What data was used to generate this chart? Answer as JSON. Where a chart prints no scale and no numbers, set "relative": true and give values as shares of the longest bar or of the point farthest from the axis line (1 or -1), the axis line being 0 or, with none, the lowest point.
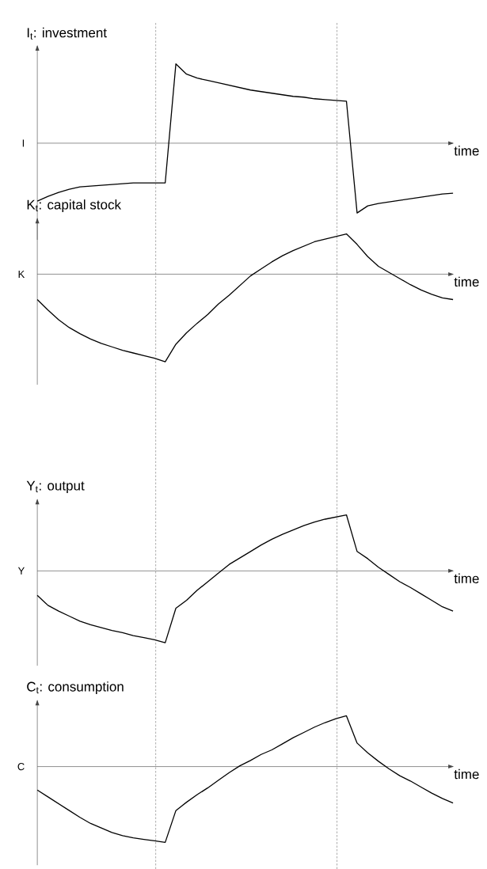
{
  "chart_data": [
    {
      "type": "line",
      "title": "I$_{t}$: investment",
      "xlabel": "time",
      "ylabel": "I",
      "relative": true,
      "color": "#000000",
      "categories": [
        null,
        null,
        null,
        null,
        null,
        null,
        null,
        null,
        null,
        null,
        null,
        null,
        null,
        null,
        null,
        null,
        null,
        null,
        null,
        null,
        null,
        null,
        null,
        null,
        null,
        null,
        null,
        null,
        null,
        null,
        null,
        null,
        null,
        null,
        null,
        null,
        null,
        null,
        null,
        null
      ],
      "values": [
        -0.73,
        -0.67,
        -0.62,
        -0.58,
        -0.55,
        -0.54,
        -0.53,
        -0.52,
        -0.51,
        -0.5,
        -0.5,
        -0.5,
        -0.5,
        1,
        0.87,
        0.82,
        0.79,
        0.76,
        0.73,
        0.7,
        0.67,
        0.65,
        0.63,
        0.61,
        0.59,
        0.58,
        0.56,
        0.55,
        0.54,
        0.53,
        -0.88,
        -0.79,
        -0.76,
        -0.74,
        -0.72,
        -0.7,
        -0.68,
        -0.66,
        -0.64,
        -0.63
      ]
    },
    {
      "type": "line",
      "title": "K$_{t}$:  capital stock",
      "xlabel": "time",
      "ylabel": "K",
      "relative": true,
      "color": "#000000",
      "categories": [
        null,
        null,
        null,
        null,
        null,
        null,
        null,
        null,
        null,
        null,
        null,
        null,
        null,
        null,
        null,
        null,
        null,
        null,
        null,
        null,
        null,
        null,
        null,
        null,
        null,
        null,
        null,
        null,
        null,
        null,
        null,
        null,
        null,
        null,
        null,
        null,
        null,
        null,
        null,
        null
      ],
      "values": [
        -0.29,
        -0.41,
        -0.52,
        -0.61,
        -0.68,
        -0.74,
        -0.79,
        -0.83,
        -0.87,
        -0.9,
        -0.93,
        -0.96,
        -1,
        -0.8,
        -0.67,
        -0.56,
        -0.46,
        -0.34,
        -0.24,
        -0.13,
        -0.02,
        0.06,
        0.14,
        0.21,
        0.27,
        0.32,
        0.37,
        0.4,
        0.43,
        0.46,
        0.34,
        0.2,
        0.09,
        0.02,
        -0.05,
        -0.12,
        -0.18,
        -0.23,
        -0.27,
        -0.29
      ]
    },
    {
      "type": "line",
      "title": "Y$_{t}$:  output",
      "xlabel": "time",
      "ylabel": "Y",
      "relative": true,
      "color": "#000000",
      "categories": [
        null,
        null,
        null,
        null,
        null,
        null,
        null,
        null,
        null,
        null,
        null,
        null,
        null,
        null,
        null,
        null,
        null,
        null,
        null,
        null,
        null,
        null,
        null,
        null,
        null,
        null,
        null,
        null,
        null,
        null,
        null,
        null,
        null,
        null,
        null,
        null,
        null,
        null,
        null,
        null
      ],
      "values": [
        -0.34,
        -0.48,
        -0.56,
        -0.63,
        -0.7,
        -0.75,
        -0.79,
        -0.83,
        -0.86,
        -0.9,
        -0.93,
        -0.96,
        -1,
        -0.52,
        -0.41,
        -0.27,
        -0.15,
        -0.03,
        0.09,
        0.18,
        0.27,
        0.36,
        0.44,
        0.51,
        0.57,
        0.63,
        0.68,
        0.72,
        0.75,
        0.78,
        0.27,
        0.17,
        0.05,
        -0.05,
        -0.15,
        -0.23,
        -0.32,
        -0.41,
        -0.5,
        -0.56
      ]
    },
    {
      "type": "line",
      "title": "C$_{t}$:  consumption",
      "xlabel": "time",
      "ylabel": "C",
      "relative": true,
      "color": "#000000",
      "categories": [
        null,
        null,
        null,
        null,
        null,
        null,
        null,
        null,
        null,
        null,
        null,
        null,
        null,
        null,
        null,
        null,
        null,
        null,
        null,
        null,
        null,
        null,
        null,
        null,
        null,
        null,
        null,
        null,
        null,
        null,
        null,
        null,
        null,
        null,
        null,
        null,
        null,
        null,
        null,
        null
      ],
      "values": [
        -0.31,
        -0.4,
        -0.49,
        -0.58,
        -0.67,
        -0.75,
        -0.81,
        -0.87,
        -0.91,
        -0.94,
        -0.96,
        -0.98,
        -1,
        -0.58,
        -0.47,
        -0.37,
        -0.28,
        -0.18,
        -0.08,
        0.01,
        0.08,
        0.16,
        0.22,
        0.3,
        0.38,
        0.45,
        0.52,
        0.58,
        0.63,
        0.67,
        0.31,
        0.18,
        0.07,
        -0.03,
        -0.12,
        -0.19,
        -0.27,
        -0.35,
        -0.42,
        -0.48
      ]
    }
  ]
}
